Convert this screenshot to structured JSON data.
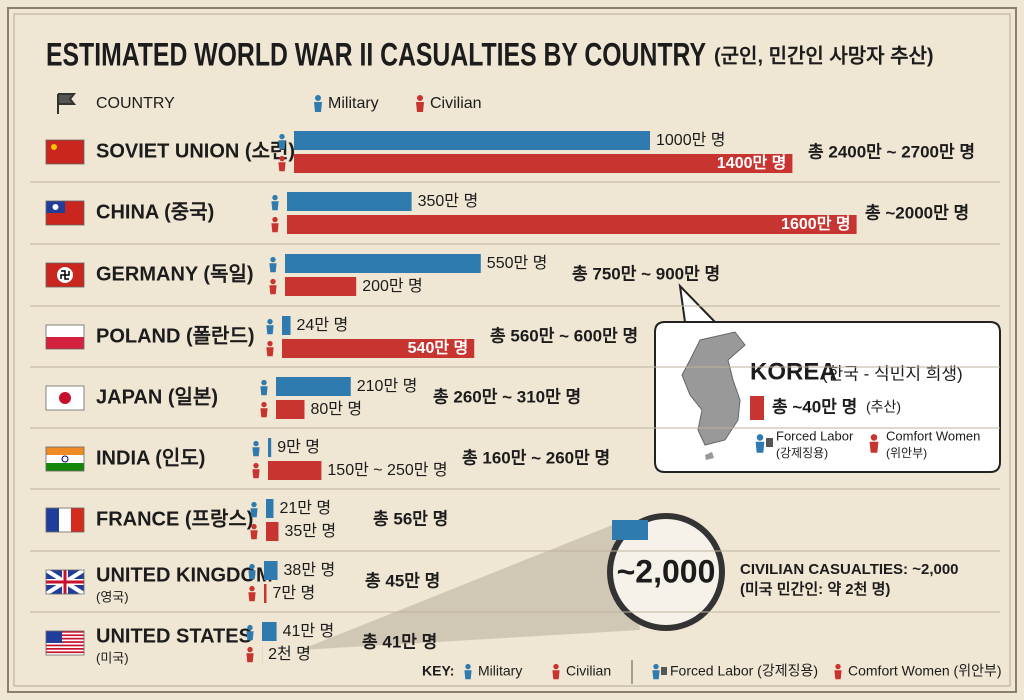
{
  "chart_data": {
    "type": "bar",
    "orientation": "horizontal",
    "title": "ESTIMATED WORLD WAR II CASUALTIES BY COUNTRY",
    "subtitle": "(군인, 민간인 사망자 추산)",
    "header_label": "COUNTRY",
    "categories": [
      "SOVIET UNION (소련)",
      "CHINA (중국)",
      "GERMANY (독일)",
      "POLAND (폴란드)",
      "JAPAN (일본)",
      "INDIA (인도)",
      "FRANCE (프랑스)",
      "UNITED KINGDOM",
      "UNITED STATES"
    ],
    "category_notes": [
      null,
      null,
      null,
      null,
      null,
      null,
      null,
      "(영국)",
      "(미국)"
    ],
    "series": [
      {
        "name": "Military",
        "color": "#2f7bb0",
        "values": [
          1000,
          350,
          550,
          24,
          210,
          9,
          21,
          38,
          41
        ],
        "value_labels": [
          "1000만 명",
          "350만 명",
          "550만 명",
          "24만 명",
          "210만 명",
          "9만 명",
          "21만 명",
          "38만 명",
          "41만 명"
        ]
      },
      {
        "name": "Civilian",
        "color": "#c8342f",
        "values": [
          1400,
          1600,
          200,
          540,
          80,
          150,
          35,
          7,
          0.2
        ],
        "value_labels": [
          "1400만 명",
          "1600만 명",
          "200만 명",
          "540만 명",
          "80만 명",
          "150만 ~ 250만 명",
          "35만 명",
          "7만 명",
          "2천 명"
        ]
      }
    ],
    "totals": [
      "총 2400만 ~ 2700만 명",
      "총 ~2000만 명",
      "총 750만 ~ 900만 명",
      "총 560만 ~ 600만 명",
      "총 260만 ~ 310만 명",
      "총 160만 ~ 260만 명",
      "총 56만 명",
      "총 45만 명",
      "총 41만 명"
    ]
  },
  "korea_callout": {
    "title": "KOREA",
    "subtitle": "(한국 - 식민지 희생)",
    "total": "총 ~40만 명",
    "total_note": "(추산)",
    "legend": [
      "Forced Labor",
      "Comfort Women"
    ],
    "legend_notes": [
      "(강제징용)",
      "(위안부)"
    ]
  },
  "magnifier": {
    "label": "~2,000",
    "caption": "CIVILIAN CASUALTIES: ~2,000",
    "caption_note": "(미국 민간인: 약 2천 명)"
  },
  "key": {
    "label": "KEY:",
    "items": [
      "Military",
      "Civilian",
      "Forced Labor (강제징용)",
      "Comfort Women (위안부)"
    ]
  }
}
